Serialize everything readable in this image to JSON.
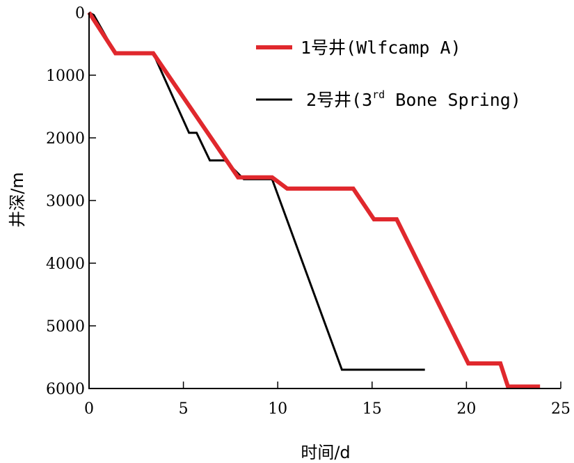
{
  "chart_data": {
    "type": "line",
    "title": "",
    "xlabel": "时间/d",
    "ylabel": "井深/m",
    "xlim": [
      0,
      25
    ],
    "ylim": [
      0,
      6000
    ],
    "y_inverted": true,
    "grid": false,
    "legend_position": "top-right",
    "x_ticks": [
      "0",
      "5",
      "10",
      "15",
      "20",
      "25"
    ],
    "y_ticks": [
      "0",
      "1000",
      "2000",
      "3000",
      "4000",
      "5000",
      "6000"
    ],
    "series": [
      {
        "name": "1号井(Wlfcamp A)",
        "color": "#e0282d",
        "x": [
          0,
          1.4,
          3.4,
          7.9,
          9.7,
          10.5,
          14.0,
          15.1,
          16.3,
          20.1,
          21.8,
          22.2,
          23.9
        ],
        "y": [
          0,
          650,
          650,
          2630,
          2630,
          2810,
          2810,
          3300,
          3300,
          5600,
          5600,
          5970,
          5970
        ]
      },
      {
        "name": "2号井(3rd Bone Spring)",
        "color": "#000000",
        "x": [
          0,
          0.25,
          1.4,
          3.4,
          5.3,
          5.7,
          6.4,
          7.2,
          8.2,
          9.7,
          13.4,
          17.8
        ],
        "y": [
          0,
          40,
          650,
          650,
          1920,
          1920,
          2360,
          2360,
          2660,
          2660,
          5700,
          5700
        ]
      }
    ],
    "legend": {
      "entries": [
        {
          "prefix": "1号井(Wlfcamp A)",
          "superscript": "",
          "suffix": ""
        },
        {
          "prefix": "2号井(3",
          "superscript": "rd",
          "suffix": " Bone Spring)"
        }
      ]
    }
  }
}
